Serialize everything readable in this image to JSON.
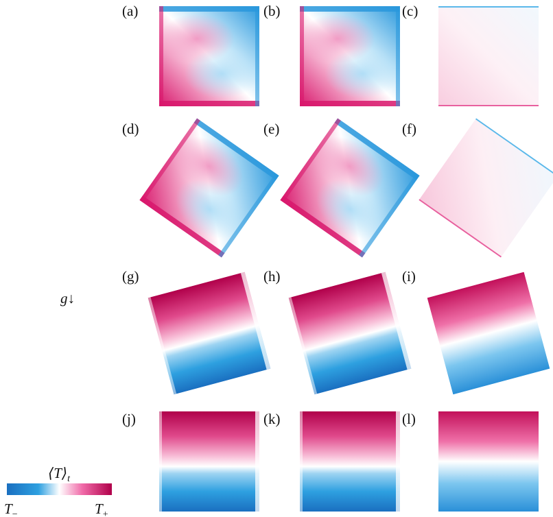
{
  "panels": [
    {
      "label": "(a)",
      "letter": "a",
      "tilt_deg": 0,
      "pattern": "swirl",
      "intensity": 1.0
    },
    {
      "label": "(b)",
      "letter": "b",
      "tilt_deg": 0,
      "pattern": "swirl",
      "intensity": 1.0
    },
    {
      "label": "(c)",
      "letter": "c",
      "tilt_deg": 0,
      "pattern": "faint",
      "intensity": 0.35
    },
    {
      "label": "(d)",
      "letter": "d",
      "tilt_deg": 35,
      "pattern": "swirl",
      "intensity": 1.0
    },
    {
      "label": "(e)",
      "letter": "e",
      "tilt_deg": 35,
      "pattern": "swirl",
      "intensity": 1.0
    },
    {
      "label": "(f)",
      "letter": "f",
      "tilt_deg": 35,
      "pattern": "faint",
      "intensity": 0.45
    },
    {
      "label": "(g)",
      "letter": "g",
      "tilt_deg": -15,
      "pattern": "stratified",
      "intensity": 1.0
    },
    {
      "label": "(h)",
      "letter": "h",
      "tilt_deg": -15,
      "pattern": "stratified",
      "intensity": 1.0
    },
    {
      "label": "(i)",
      "letter": "i",
      "tilt_deg": -15,
      "pattern": "linear",
      "intensity": 0.9
    },
    {
      "label": "(j)",
      "letter": "j",
      "tilt_deg": 0,
      "pattern": "stratified",
      "intensity": 1.0
    },
    {
      "label": "(k)",
      "letter": "k",
      "tilt_deg": 0,
      "pattern": "stratified",
      "intensity": 1.0
    },
    {
      "label": "(l)",
      "letter": "l",
      "tilt_deg": 0,
      "pattern": "linear",
      "intensity": 0.9
    }
  ],
  "gravity": {
    "symbol": "g",
    "arrow": "↓"
  },
  "colorbar": {
    "title": "⟨T⟩",
    "title_sub": "t",
    "min_label": "T",
    "min_sub": "−",
    "max_label": "T",
    "max_sub": "+",
    "colors": {
      "cold_dark": "#1a6fc0",
      "cold": "#2ea0e0",
      "neutral": "#ffffff",
      "hot": "#f06aa8",
      "hot_dark": "#b0004a"
    }
  }
}
